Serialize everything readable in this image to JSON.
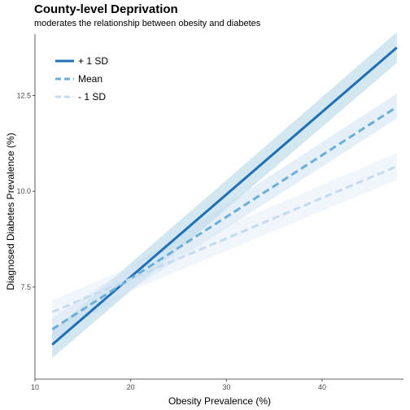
{
  "chart_data": {
    "type": "line",
    "title": "County-level Deprivation",
    "subtitle": "moderates the relationship between obesity and diabetes",
    "xlabel": "Obesity Prevalence (%)",
    "ylabel": "Diagnosed Diabetes Prevalence (%)",
    "xlim": [
      10,
      48.5
    ],
    "ylim": [
      5.1,
      14.1
    ],
    "xticks": [
      10,
      20,
      30,
      40
    ],
    "yticks": [
      7.5,
      10.0,
      12.5
    ],
    "ytick_labels": [
      "7.5",
      "10.0",
      "12.5"
    ],
    "grid": false,
    "legend_position": "top-left",
    "series": [
      {
        "name": "+ 1 SD",
        "color": "#1f6fb5",
        "dash": "solid",
        "band_color": "#9ecae1",
        "x": [
          11.8,
          47.8
        ],
        "y": [
          6.0,
          13.75
        ],
        "ci_low": [
          5.65,
          13.35
        ],
        "ci_high": [
          6.35,
          14.15
        ]
      },
      {
        "name": "Mean",
        "color": "#6baed6",
        "dash": "dashed",
        "band_color": "#c6dbef",
        "x": [
          11.8,
          47.8
        ],
        "y": [
          6.4,
          12.2
        ],
        "ci_low": [
          6.1,
          11.9
        ],
        "ci_high": [
          6.7,
          12.55
        ]
      },
      {
        "name": "- 1 SD",
        "color": "#c6dbef",
        "dash": "dashed",
        "band_color": "#deebf7",
        "x": [
          11.8,
          47.8
        ],
        "y": [
          6.85,
          10.65
        ],
        "ci_low": [
          6.55,
          10.3
        ],
        "ci_high": [
          7.15,
          11.0
        ]
      }
    ]
  }
}
